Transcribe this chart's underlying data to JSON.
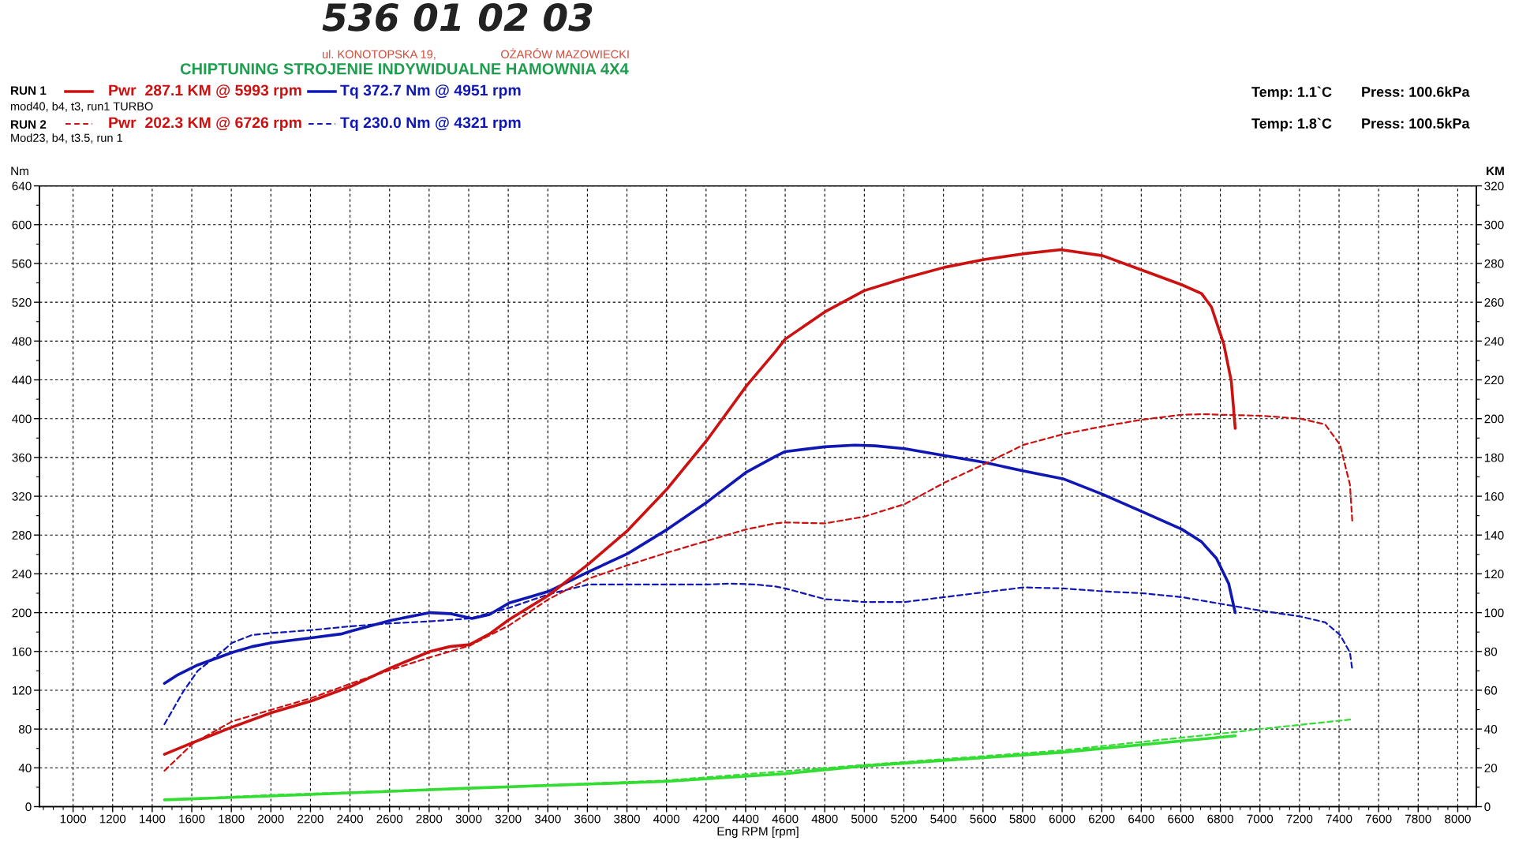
{
  "chart_data": {
    "type": "line",
    "xlabel": "Eng RPM [rpm]",
    "ylabel": "Nm",
    "y2label": "KM",
    "annotations": [
      "536 01 02 03",
      "ul. KONOTOPSKA 19,",
      "OŻARÓW MAZOWIECKI",
      "CHIPTUNING STROJENIE INDYWIDUALNE HAMOWNIA 4X4",
      "RUN 1",
      "mod40, b4, t3, run1 TURBO",
      "RUN 2",
      "Mod23, b4, t3.5, run 1",
      "Temp: 1.1`C",
      "Press: 100.6kPa",
      "Temp: 1.8`C",
      "Press: 100.5kPa"
    ],
    "xlim": [
      830,
      8094
    ],
    "xticks": [
      1000,
      1200,
      1400,
      1600,
      1800,
      2000,
      2200,
      2400,
      2600,
      2800,
      3000,
      3200,
      3400,
      3600,
      3800,
      4000,
      4200,
      4400,
      4600,
      4800,
      5000,
      5200,
      5400,
      5600,
      5800,
      6000,
      6200,
      6400,
      6600,
      6800,
      7000,
      7200,
      7400,
      7600,
      7800,
      8000
    ],
    "ylim": [
      0,
      640
    ],
    "yticks": [
      0,
      40,
      80,
      120,
      160,
      200,
      240,
      280,
      320,
      360,
      400,
      440,
      480,
      520,
      560,
      600,
      640
    ],
    "y2lim": [
      0,
      320
    ],
    "y2ticks": [
      0,
      20,
      40,
      60,
      80,
      100,
      120,
      140,
      160,
      180,
      200,
      220,
      240,
      260,
      280,
      300,
      320
    ],
    "grid": true,
    "legend": "top left",
    "series": [
      {
        "name": "Pwr  287.1 KM @ 5993 rpm",
        "color": "#cc1111",
        "axis": "y2",
        "line_style": "solid",
        "x": [
          1462,
          1605,
          1805,
          2005,
          2205,
          2405,
          2605,
          2805,
          2905,
          3005,
          3105,
          3205,
          3405,
          3605,
          3805,
          4005,
          4205,
          4405,
          4550,
          4600,
          4800,
          5000,
          5205,
          5405,
          5605,
          5805,
          5993,
          6205,
          6405,
          6605,
          6705,
          6755,
          6817,
          6855,
          6875
        ],
        "values": [
          27,
          33,
          41,
          48.5,
          54.5,
          62,
          71.5,
          80,
          82.5,
          83.5,
          89,
          96.5,
          109,
          125,
          142.5,
          164,
          189,
          217,
          234.5,
          241,
          255,
          266,
          272.5,
          278,
          282,
          285,
          287.1,
          284,
          276.5,
          269,
          264.5,
          257.5,
          238.5,
          219.5,
          195
        ]
      },
      {
        "name": "Tq 372.7 Nm @ 4951 rpm",
        "color": "#1018b4",
        "axis": "y",
        "line_style": "solid",
        "x": [
          1462,
          1530,
          1630,
          1805,
          1905,
          2005,
          2205,
          2355,
          2405,
          2605,
          2805,
          2905,
          3017,
          3105,
          3205,
          3305,
          3405,
          3505,
          3605,
          3805,
          4005,
          4205,
          4405,
          4550,
          4600,
          4800,
          4951,
          5055,
          5205,
          5405,
          5605,
          5805,
          6005,
          6205,
          6405,
          6605,
          6705,
          6780,
          6842,
          6875
        ],
        "values": [
          127,
          136,
          146,
          159,
          165,
          169,
          174,
          178,
          181,
          192,
          200,
          199,
          194,
          198,
          210,
          216,
          222,
          232,
          242,
          261,
          286,
          314,
          345,
          361,
          366,
          371,
          372.7,
          372,
          369,
          362,
          355,
          346,
          338,
          322,
          304,
          286,
          273,
          256,
          230,
          200
        ]
      },
      {
        "name": "Pwr  202.3 KM @ 6726 rpm",
        "color": "#cc1111",
        "axis": "y2",
        "line_style": "dashed",
        "x": [
          1462,
          1605,
          1805,
          2005,
          2205,
          2405,
          2605,
          2805,
          3005,
          3205,
          3405,
          3605,
          3805,
          4005,
          4205,
          4405,
          4550,
          4600,
          4800,
          5000,
          5205,
          5405,
          5605,
          5805,
          6005,
          6205,
          6405,
          6605,
          6726,
          6805,
          7005,
          7205,
          7330,
          7405,
          7455,
          7467
        ],
        "values": [
          18.5,
          32.5,
          44,
          50,
          56,
          63.5,
          70.5,
          77,
          83,
          93.5,
          107,
          117.5,
          124.5,
          131,
          137,
          143,
          146,
          146.5,
          146,
          149.5,
          156,
          167,
          176.5,
          186.5,
          192,
          196,
          199.5,
          202,
          202.3,
          202,
          201.5,
          200,
          197,
          186.5,
          166,
          147
        ]
      },
      {
        "name": "Tq 230.0 Nm @ 4321 rpm",
        "color": "#1018b4",
        "axis": "y",
        "line_style": "dashed",
        "x": [
          1462,
          1555,
          1630,
          1730,
          1805,
          1905,
          2005,
          2205,
          2405,
          2605,
          2805,
          3005,
          3205,
          3405,
          3605,
          3805,
          4005,
          4205,
          4321,
          4450,
          4550,
          4600,
          4800,
          5000,
          5205,
          5405,
          5605,
          5805,
          6005,
          6205,
          6405,
          6605,
          6805,
          7005,
          7205,
          7330,
          7405,
          7455,
          7467
        ],
        "values": [
          85,
          118,
          140,
          156,
          169,
          177,
          179,
          182,
          186,
          189,
          191,
          194,
          205,
          219,
          229,
          229,
          229,
          229,
          230.0,
          229,
          227,
          225,
          214,
          211,
          211,
          216,
          221,
          226,
          225,
          222,
          220,
          216,
          209,
          202,
          196,
          190,
          177,
          159,
          141
        ]
      },
      {
        "color": "#33dd33",
        "axis": "y2",
        "line_style": "solid",
        "x": [
          1462,
          2000,
          3000,
          4000,
          4600,
          5000,
          6000,
          6875
        ],
        "values": [
          3.5,
          5.5,
          9.5,
          13,
          17,
          21,
          28,
          36.5
        ]
      },
      {
        "color": "#33dd33",
        "axis": "y2",
        "line_style": "dashed",
        "x": [
          1462,
          2000,
          3000,
          4000,
          5000,
          6000,
          6875,
          7000,
          7467
        ],
        "values": [
          3.5,
          6,
          9.5,
          13.5,
          21.5,
          29,
          38.5,
          40,
          45
        ]
      }
    ]
  }
}
